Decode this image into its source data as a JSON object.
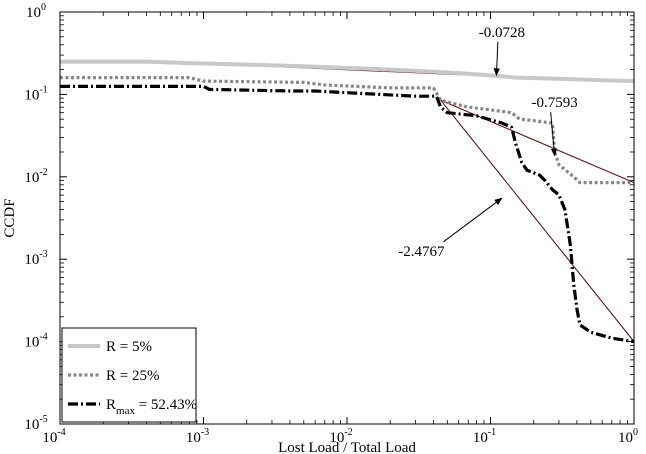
{
  "chart_data": {
    "type": "line",
    "title": "",
    "xlabel": "Lost Load / Total Load",
    "ylabel": "CCDF",
    "x_scale": "log",
    "y_scale": "log",
    "xlim": [
      0.0001,
      1
    ],
    "ylim": [
      1e-05,
      1
    ],
    "grid": false,
    "legend_position": "bottom-left",
    "x_ticks": [
      {
        "base": "10",
        "exp": "-4",
        "value": 0.0001
      },
      {
        "base": "10",
        "exp": "-3",
        "value": 0.001
      },
      {
        "base": "10",
        "exp": "-2",
        "value": 0.01
      },
      {
        "base": "10",
        "exp": "-1",
        "value": 0.1
      },
      {
        "base": "10",
        "exp": "0",
        "value": 1
      }
    ],
    "y_ticks": [
      {
        "base": "10",
        "exp": "0",
        "value": 1
      },
      {
        "base": "10",
        "exp": "-1",
        "value": 0.1
      },
      {
        "base": "10",
        "exp": "-2",
        "value": 0.01
      },
      {
        "base": "10",
        "exp": "-3",
        "value": 0.001
      },
      {
        "base": "10",
        "exp": "-4",
        "value": 0.0001
      },
      {
        "base": "10",
        "exp": "-5",
        "value": 1e-05
      }
    ],
    "series": [
      {
        "name": "R = 5%",
        "label_main": "R = 5%",
        "label_sub": "",
        "label_rest": "",
        "color": "#c8c8c8",
        "style": "solid",
        "points": [
          [
            0.0001,
            0.25
          ],
          [
            0.0004,
            0.25
          ],
          [
            0.0008,
            0.24
          ],
          [
            0.002,
            0.23
          ],
          [
            0.005,
            0.22
          ],
          [
            0.02,
            0.2
          ],
          [
            0.05,
            0.185
          ],
          [
            0.1,
            0.17
          ],
          [
            0.15,
            0.16
          ],
          [
            0.3,
            0.155
          ],
          [
            0.5,
            0.15
          ],
          [
            1,
            0.145
          ]
        ]
      },
      {
        "name": "R = 25%",
        "label_main": "R = 25%",
        "label_sub": "",
        "label_rest": "",
        "color": "#888888",
        "style": "dotted",
        "points": [
          [
            0.0001,
            0.16
          ],
          [
            0.0008,
            0.16
          ],
          [
            0.001,
            0.145
          ],
          [
            0.005,
            0.14
          ],
          [
            0.007,
            0.13
          ],
          [
            0.02,
            0.12
          ],
          [
            0.04,
            0.12
          ],
          [
            0.045,
            0.085
          ],
          [
            0.07,
            0.07
          ],
          [
            0.1,
            0.065
          ],
          [
            0.14,
            0.06
          ],
          [
            0.16,
            0.05
          ],
          [
            0.2,
            0.048
          ],
          [
            0.27,
            0.045
          ],
          [
            0.28,
            0.02
          ],
          [
            0.3,
            0.014
          ],
          [
            0.38,
            0.01
          ],
          [
            0.42,
            0.0085
          ],
          [
            1,
            0.0085
          ]
        ]
      },
      {
        "name": "R_max = 52.43%",
        "label_main": "R",
        "label_sub": "max",
        "label_rest": " = 52.43%",
        "color": "#000000",
        "style": "dashdot",
        "points": [
          [
            0.0001,
            0.125
          ],
          [
            0.001,
            0.125
          ],
          [
            0.0011,
            0.115
          ],
          [
            0.004,
            0.11
          ],
          [
            0.006,
            0.11
          ],
          [
            0.01,
            0.105
          ],
          [
            0.03,
            0.095
          ],
          [
            0.042,
            0.095
          ],
          [
            0.045,
            0.07
          ],
          [
            0.05,
            0.06
          ],
          [
            0.08,
            0.055
          ],
          [
            0.12,
            0.045
          ],
          [
            0.14,
            0.04
          ],
          [
            0.15,
            0.025
          ],
          [
            0.165,
            0.015
          ],
          [
            0.18,
            0.012
          ],
          [
            0.22,
            0.0105
          ],
          [
            0.24,
            0.009
          ],
          [
            0.27,
            0.007
          ],
          [
            0.3,
            0.006
          ],
          [
            0.33,
            0.004
          ],
          [
            0.36,
            0.0015
          ],
          [
            0.38,
            0.0005
          ],
          [
            0.4,
            0.00025
          ],
          [
            0.42,
            0.00016
          ],
          [
            0.5,
            0.00013
          ],
          [
            0.7,
            0.00011
          ],
          [
            1,
            0.0001
          ]
        ]
      }
    ],
    "fit_lines": [
      {
        "slope_label": "-0.0728",
        "color": "#5c1a1a",
        "from": [
          0.0004,
          0.255
        ],
        "to": [
          1,
          0.14
        ]
      },
      {
        "slope_label": "-0.7593",
        "color": "#5c1a1a",
        "from": [
          0.045,
          0.085
        ],
        "to": [
          1,
          0.0085
        ]
      },
      {
        "slope_label": "-2.4767",
        "color": "#5c1a1a",
        "from": [
          0.045,
          0.085
        ],
        "to": [
          1,
          0.0001
        ]
      }
    ],
    "annotations": [
      {
        "text": "-0.0728",
        "target_fit": 0,
        "label_at": [
          0.12,
          0.5
        ],
        "arrow_to": [
          0.11,
          0.17
        ]
      },
      {
        "text": "-0.7593",
        "target_fit": 1,
        "label_at": [
          0.28,
          0.07
        ],
        "arrow_to": [
          0.28,
          0.018
        ]
      },
      {
        "text": "-2.4767",
        "target_fit": 2,
        "label_at": [
          0.033,
          0.0011
        ],
        "arrow_to": [
          0.12,
          0.0055
        ]
      }
    ]
  }
}
